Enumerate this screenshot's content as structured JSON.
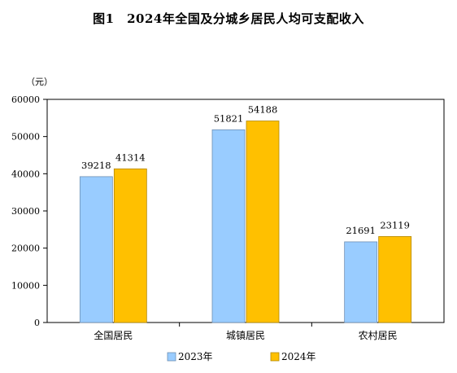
{
  "chart_data": {
    "type": "bar",
    "title": "图1　2024年全国及分城乡居民人均可支配收入",
    "unit": "（元）",
    "categories": [
      "全国居民",
      "城镇居民",
      "农村居民"
    ],
    "series": [
      {
        "name": "2023年",
        "values": [
          39218,
          51821,
          21691
        ],
        "color": "#99CCFF",
        "stroke": "#6E8FB3"
      },
      {
        "name": "2024年",
        "values": [
          41314,
          54188,
          23119
        ],
        "color": "#FFC000",
        "stroke": "#B38700"
      }
    ],
    "ylim": [
      0,
      60000
    ],
    "yticks": [
      "0",
      "10000",
      "20000",
      "30000",
      "40000",
      "50000",
      "60000"
    ],
    "legend_position": "bottom",
    "grid": false
  }
}
